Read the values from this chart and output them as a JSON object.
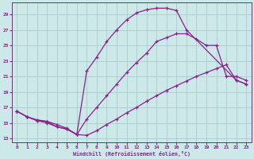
{
  "xlabel": "Windchill (Refroidissement éolien,°C)",
  "background_color": "#cce8e8",
  "grid_color": "#aacccc",
  "line_color": "#882288",
  "xlim": [
    -0.5,
    23.5
  ],
  "ylim": [
    12.5,
    30.5
  ],
  "xticks": [
    0,
    1,
    2,
    3,
    4,
    5,
    6,
    7,
    8,
    9,
    10,
    11,
    12,
    13,
    14,
    15,
    16,
    17,
    18,
    19,
    20,
    21,
    22,
    23
  ],
  "yticks": [
    13,
    15,
    17,
    19,
    21,
    23,
    25,
    27,
    29
  ],
  "curve_top_x": [
    0,
    1,
    2,
    3,
    4,
    5,
    6,
    7,
    8,
    9,
    10,
    11,
    12,
    13,
    14,
    15,
    16,
    17,
    22,
    23
  ],
  "curve_top_y": [
    16.5,
    15.8,
    15.3,
    15.2,
    14.5,
    14.2,
    13.5,
    21.7,
    23.5,
    25.5,
    27.0,
    28.3,
    29.2,
    29.6,
    29.8,
    29.8,
    29.5,
    27.0,
    20.5,
    20.0
  ],
  "curve_mid_x": [
    0,
    1,
    2,
    3,
    4,
    5,
    6,
    7,
    8,
    9,
    10,
    11,
    12,
    13,
    14,
    15,
    16,
    17,
    18,
    19,
    20,
    21,
    22,
    23
  ],
  "curve_mid_y": [
    16.5,
    15.8,
    15.3,
    15.0,
    14.5,
    14.2,
    13.5,
    15.5,
    17.0,
    18.5,
    20.0,
    21.5,
    22.8,
    24.0,
    25.5,
    26.0,
    26.5,
    26.5,
    25.8,
    25.0,
    25.0,
    21.0,
    21.0,
    20.5
  ],
  "curve_bot_x": [
    0,
    1,
    2,
    3,
    4,
    5,
    6,
    7,
    8,
    9,
    10,
    11,
    12,
    13,
    14,
    15,
    16,
    17,
    18,
    19,
    20,
    21,
    22,
    23
  ],
  "curve_bot_y": [
    16.5,
    15.8,
    15.4,
    15.2,
    14.8,
    14.3,
    13.5,
    13.4,
    14.0,
    14.8,
    15.5,
    16.3,
    17.0,
    17.8,
    18.5,
    19.2,
    19.8,
    20.4,
    21.0,
    21.5,
    22.0,
    22.5,
    20.5,
    20.0
  ]
}
